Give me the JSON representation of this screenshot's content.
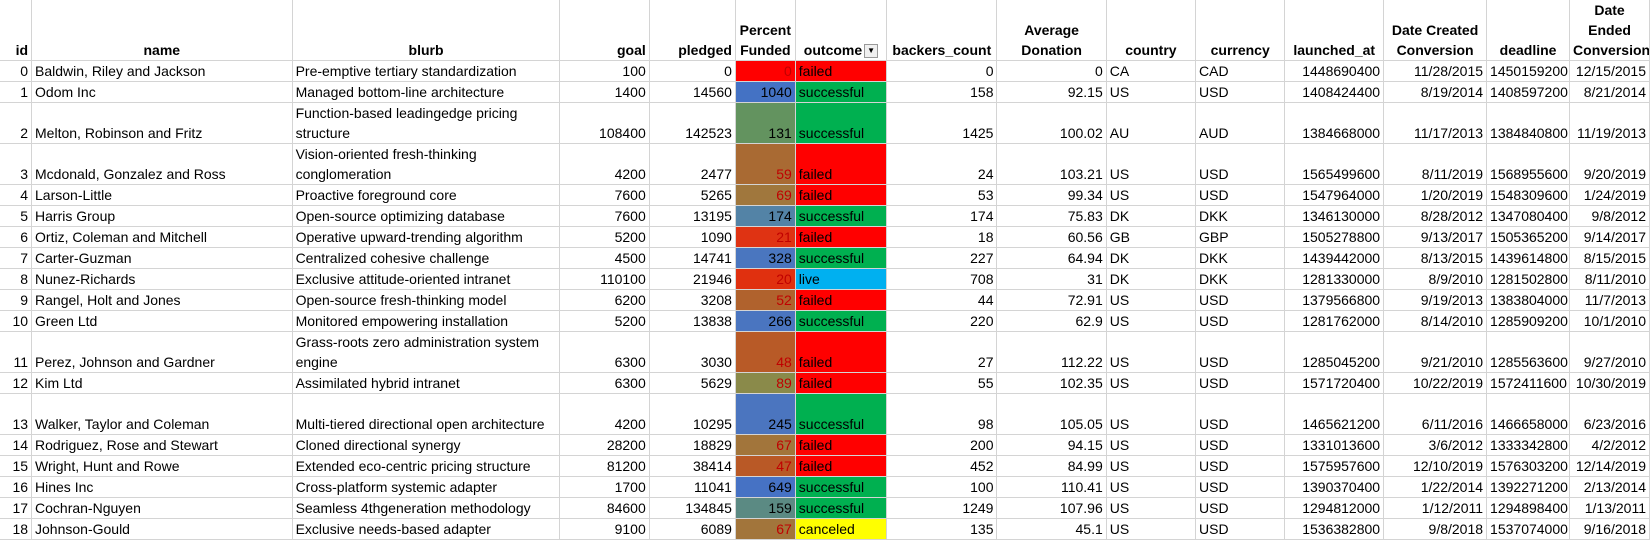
{
  "headers": [
    "id",
    "name",
    "blurb",
    "goal",
    "pledged",
    "Percent Funded",
    "outcome",
    "backers_count",
    "Average Donation",
    "country",
    "currency",
    "launched_at",
    "Date Created Conversion",
    "deadline",
    "Date Ended Conversion"
  ],
  "colors": {
    "failed": "#ff0000",
    "successful": "#00b050",
    "live": "#00b0f0",
    "canceled": "#ffff00"
  },
  "rows": [
    {
      "id": "0",
      "name": "Baldwin, Riley and Jackson",
      "blurb": "Pre-emptive tertiary standardization",
      "goal": "100",
      "pledged": "0",
      "pct": "0",
      "pct_color": "#ff0000",
      "outcome": "failed",
      "backers": "0",
      "avg": "0",
      "country": "CA",
      "currency": "CAD",
      "launched": "1448690400",
      "created": "11/28/2015",
      "deadline": "1450159200",
      "ended": "12/15/2015",
      "tall": false
    },
    {
      "id": "1",
      "name": "Odom Inc",
      "blurb": "Managed bottom-line architecture",
      "goal": "1400",
      "pledged": "14560",
      "pct": "1040",
      "pct_color": "#4472c4",
      "outcome": "successful",
      "backers": "158",
      "avg": "92.15",
      "country": "US",
      "currency": "USD",
      "launched": "1408424400",
      "created": "8/19/2014",
      "deadline": "1408597200",
      "ended": "8/21/2014",
      "tall": false
    },
    {
      "id": "2",
      "name": "Melton, Robinson and Fritz",
      "blurb": "Function-based leadingedge pricing structure",
      "goal": "108400",
      "pledged": "142523",
      "pct": "131",
      "pct_color": "#63935f",
      "outcome": "successful",
      "backers": "1425",
      "avg": "100.02",
      "country": "AU",
      "currency": "AUD",
      "launched": "1384668000",
      "created": "11/17/2013",
      "deadline": "1384840800",
      "ended": "11/19/2013",
      "tall": true
    },
    {
      "id": "3",
      "name": "Mcdonald, Gonzalez and Ross",
      "blurb": "Vision-oriented fresh-thinking conglomeration",
      "goal": "4200",
      "pledged": "2477",
      "pct": "59",
      "pct_color": "#a96a33",
      "outcome": "failed",
      "backers": "24",
      "avg": "103.21",
      "country": "US",
      "currency": "USD",
      "launched": "1565499600",
      "created": "8/11/2019",
      "deadline": "1568955600",
      "ended": "9/20/2019",
      "tall": true
    },
    {
      "id": "4",
      "name": "Larson-Little",
      "blurb": "Proactive foreground core",
      "goal": "7600",
      "pledged": "5265",
      "pct": "69",
      "pct_color": "#a0773d",
      "outcome": "failed",
      "backers": "53",
      "avg": "99.34",
      "country": "US",
      "currency": "USD",
      "launched": "1547964000",
      "created": "1/20/2019",
      "deadline": "1548309600",
      "ended": "1/24/2019",
      "tall": false
    },
    {
      "id": "5",
      "name": "Harris Group",
      "blurb": "Open-source optimizing database",
      "goal": "7600",
      "pledged": "13195",
      "pct": "174",
      "pct_color": "#5383a6",
      "outcome": "successful",
      "backers": "174",
      "avg": "75.83",
      "country": "DK",
      "currency": "DKK",
      "launched": "1346130000",
      "created": "8/28/2012",
      "deadline": "1347080400",
      "ended": "9/8/2012",
      "tall": false
    },
    {
      "id": "6",
      "name": "Ortiz, Coleman and Mitchell",
      "blurb": "Operative upward-trending algorithm",
      "goal": "5200",
      "pledged": "1090",
      "pct": "21",
      "pct_color": "#df3313",
      "outcome": "failed",
      "backers": "18",
      "avg": "60.56",
      "country": "GB",
      "currency": "GBP",
      "launched": "1505278800",
      "created": "9/13/2017",
      "deadline": "1505365200",
      "ended": "9/14/2017",
      "tall": false
    },
    {
      "id": "7",
      "name": "Carter-Guzman",
      "blurb": "Centralized cohesive challenge",
      "goal": "4500",
      "pledged": "14741",
      "pct": "328",
      "pct_color": "#4a76bf",
      "outcome": "successful",
      "backers": "227",
      "avg": "64.94",
      "country": "DK",
      "currency": "DKK",
      "launched": "1439442000",
      "created": "8/13/2015",
      "deadline": "1439614800",
      "ended": "8/15/2015",
      "tall": false
    },
    {
      "id": "8",
      "name": "Nunez-Richards",
      "blurb": "Exclusive attitude-oriented intranet",
      "goal": "110100",
      "pledged": "21946",
      "pct": "20",
      "pct_color": "#e0300f",
      "outcome": "live",
      "backers": "708",
      "avg": "31",
      "country": "DK",
      "currency": "DKK",
      "launched": "1281330000",
      "created": "8/9/2010",
      "deadline": "1281502800",
      "ended": "8/11/2010",
      "tall": false
    },
    {
      "id": "9",
      "name": "Rangel, Holt and Jones",
      "blurb": "Open-source fresh-thinking model",
      "goal": "6200",
      "pledged": "3208",
      "pct": "52",
      "pct_color": "#b0622d",
      "outcome": "failed",
      "backers": "44",
      "avg": "72.91",
      "country": "US",
      "currency": "USD",
      "launched": "1379566800",
      "created": "9/19/2013",
      "deadline": "1383804000",
      "ended": "11/7/2013",
      "tall": false
    },
    {
      "id": "10",
      "name": "Green Ltd",
      "blurb": "Monitored empowering installation",
      "goal": "5200",
      "pledged": "13838",
      "pct": "266",
      "pct_color": "#4a75c0",
      "outcome": "successful",
      "backers": "220",
      "avg": "62.9",
      "country": "US",
      "currency": "USD",
      "launched": "1281762000",
      "created": "8/14/2010",
      "deadline": "1285909200",
      "ended": "10/1/2010",
      "tall": false
    },
    {
      "id": "11",
      "name": "Perez, Johnson and Gardner",
      "blurb": "Grass-roots zero administration system engine",
      "goal": "6300",
      "pledged": "3030",
      "pct": "48",
      "pct_color": "#b85a27",
      "outcome": "failed",
      "backers": "27",
      "avg": "112.22",
      "country": "US",
      "currency": "USD",
      "launched": "1285045200",
      "created": "9/21/2010",
      "deadline": "1285563600",
      "ended": "9/27/2010",
      "tall": true
    },
    {
      "id": "12",
      "name": "Kim Ltd",
      "blurb": "Assimilated hybrid intranet",
      "goal": "6300",
      "pledged": "5629",
      "pct": "89",
      "pct_color": "#8a8a4a",
      "outcome": "failed",
      "backers": "55",
      "avg": "102.35",
      "country": "US",
      "currency": "USD",
      "launched": "1571720400",
      "created": "10/22/2019",
      "deadline": "1572411600",
      "ended": "10/30/2019",
      "tall": false
    },
    {
      "id": "13",
      "name": "Walker, Taylor and Coleman",
      "blurb": "Multi-tiered directional open architecture",
      "goal": "4200",
      "pledged": "10295",
      "pct": "245",
      "pct_color": "#4b75bf",
      "outcome": "successful",
      "backers": "98",
      "avg": "105.05",
      "country": "US",
      "currency": "USD",
      "launched": "1465621200",
      "created": "6/11/2016",
      "deadline": "1466658000",
      "ended": "6/23/2016",
      "tall": true
    },
    {
      "id": "14",
      "name": "Rodriguez, Rose and Stewart",
      "blurb": "Cloned directional synergy",
      "goal": "28200",
      "pledged": "18829",
      "pct": "67",
      "pct_color": "#a2753b",
      "outcome": "failed",
      "backers": "200",
      "avg": "94.15",
      "country": "US",
      "currency": "USD",
      "launched": "1331013600",
      "created": "3/6/2012",
      "deadline": "1333342800",
      "ended": "4/2/2012",
      "tall": false
    },
    {
      "id": "15",
      "name": "Wright, Hunt and Rowe",
      "blurb": "Extended eco-centric pricing structure",
      "goal": "81200",
      "pledged": "38414",
      "pct": "47",
      "pct_color": "#b95926",
      "outcome": "failed",
      "backers": "452",
      "avg": "84.99",
      "country": "US",
      "currency": "USD",
      "launched": "1575957600",
      "created": "12/10/2019",
      "deadline": "1576303200",
      "ended": "12/14/2019",
      "tall": false
    },
    {
      "id": "16",
      "name": "Hines Inc",
      "blurb": "Cross-platform systemic adapter",
      "goal": "1700",
      "pledged": "11041",
      "pct": "649",
      "pct_color": "#4672c4",
      "outcome": "successful",
      "backers": "100",
      "avg": "110.41",
      "country": "US",
      "currency": "USD",
      "launched": "1390370400",
      "created": "1/22/2014",
      "deadline": "1392271200",
      "ended": "2/13/2014",
      "tall": false
    },
    {
      "id": "17",
      "name": "Cochran-Nguyen",
      "blurb": "Seamless 4thgeneration methodology",
      "goal": "84600",
      "pledged": "134845",
      "pct": "159",
      "pct_color": "#5b8a83",
      "outcome": "successful",
      "backers": "1249",
      "avg": "107.96",
      "country": "US",
      "currency": "USD",
      "launched": "1294812000",
      "created": "1/12/2011",
      "deadline": "1294898400",
      "ended": "1/13/2011",
      "tall": false
    },
    {
      "id": "18",
      "name": "Johnson-Gould",
      "blurb": "Exclusive needs-based adapter",
      "goal": "9100",
      "pledged": "6089",
      "pct": "67",
      "pct_color": "#a2753b",
      "outcome": "canceled",
      "backers": "135",
      "avg": "45.1",
      "country": "US",
      "currency": "USD",
      "launched": "1536382800",
      "created": "9/8/2018",
      "deadline": "1537074000",
      "ended": "9/16/2018",
      "tall": false
    }
  ]
}
